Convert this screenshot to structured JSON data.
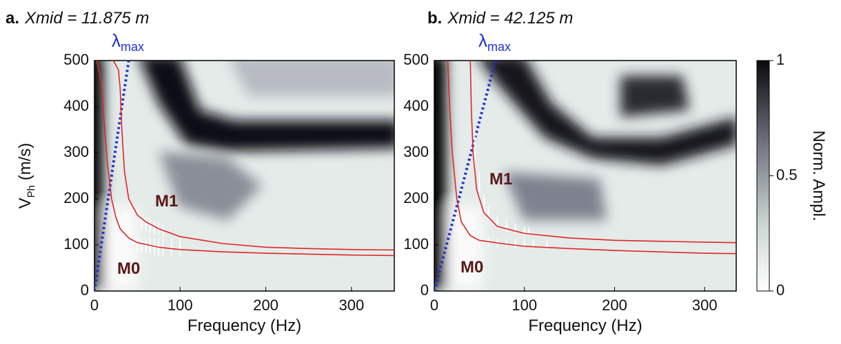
{
  "chart_data": [
    {
      "type": "dispersion",
      "panel_label": "a.",
      "title": "Xmid = 11.875 m",
      "xlabel": "Frequency (Hz)",
      "ylabel": {
        "main": "V",
        "sub": "Ph",
        "rest": " (m/s)"
      },
      "xlim": [
        0,
        350
      ],
      "xticks": [
        0,
        100,
        200,
        300
      ],
      "ylim": [
        0,
        500
      ],
      "yticks": [
        0,
        100,
        200,
        300,
        400,
        500
      ],
      "lambda": {
        "label": "λ",
        "sub": "max",
        "color": "#1f2fd6",
        "x": [
          0,
          40
        ],
        "values": [
          0,
          500
        ]
      },
      "series": [
        {
          "name": "M0",
          "color": "#e02424",
          "x": [
            3,
            8,
            12,
            15,
            20,
            25,
            30,
            40,
            50,
            75,
            100,
            150,
            200,
            300,
            350
          ],
          "values": [
            500,
            450,
            350,
            280,
            200,
            160,
            135,
            115,
            105,
            95,
            90,
            85,
            82,
            78,
            77
          ]
        },
        {
          "name": "M1",
          "color": "#e02424",
          "x": [
            22,
            28,
            30,
            32,
            35,
            40,
            50,
            60,
            75,
            100,
            150,
            200,
            250,
            300,
            350
          ],
          "values": [
            500,
            480,
            440,
            350,
            260,
            200,
            165,
            150,
            135,
            118,
            103,
            95,
            92,
            90,
            89
          ]
        }
      ],
      "picks": [
        {
          "x": [
            50,
            55,
            60,
            65,
            70,
            75,
            80,
            90,
            100
          ],
          "values": [
            100,
            99,
            98,
            97,
            96,
            95,
            95,
            94,
            94
          ],
          "errors": [
            15,
            15,
            15,
            18,
            18,
            20,
            20,
            20,
            20
          ]
        },
        {
          "x": [
            55,
            60,
            65,
            70,
            75,
            80
          ],
          "values": [
            150,
            145,
            140,
            138,
            135,
            132
          ],
          "errors": [
            15,
            15,
            15,
            15,
            15,
            15
          ]
        }
      ]
    },
    {
      "type": "dispersion",
      "panel_label": "b.",
      "title": "Xmid = 42.125 m",
      "xlabel": "Frequency (Hz)",
      "xlim": [
        0,
        335
      ],
      "xticks": [
        0,
        100,
        200,
        300
      ],
      "ylim": [
        0,
        500
      ],
      "yticks": [
        0,
        100,
        200,
        300,
        400,
        500
      ],
      "lambda": {
        "label": "λ",
        "sub": "max",
        "color": "#1f2fd6",
        "x": [
          0,
          68
        ],
        "values": [
          0,
          500
        ]
      },
      "series": [
        {
          "name": "M0",
          "color": "#e02424",
          "x": [
            15,
            17,
            20,
            25,
            30,
            40,
            50,
            75,
            100,
            150,
            200,
            250,
            300,
            335
          ],
          "values": [
            500,
            400,
            300,
            200,
            150,
            120,
            110,
            103,
            97,
            92,
            88,
            85,
            82,
            81
          ]
        },
        {
          "name": "M1",
          "color": "#e02424",
          "x": [
            40,
            41,
            43,
            47,
            55,
            70,
            100,
            150,
            200,
            250,
            300,
            335
          ],
          "values": [
            500,
            400,
            300,
            220,
            170,
            140,
            125,
            115,
            110,
            108,
            106,
            105
          ]
        }
      ],
      "picks": [
        {
          "x": [
            45,
            50,
            60,
            70,
            80,
            90,
            100,
            110,
            125
          ],
          "values": [
            108,
            107,
            106,
            105,
            104,
            103,
            103,
            102,
            100
          ],
          "errors": [
            10,
            10,
            10,
            10,
            10,
            10,
            10,
            10,
            10
          ]
        },
        {
          "x": [
            45,
            50,
            55,
            60,
            70,
            80,
            90,
            100,
            105
          ],
          "values": [
            300,
            230,
            190,
            170,
            150,
            140,
            135,
            130,
            128
          ],
          "errors": [
            50,
            30,
            20,
            15,
            12,
            12,
            10,
            10,
            10
          ]
        }
      ]
    }
  ],
  "colorbar": {
    "label": "Norm. Ampl.",
    "lim": [
      0,
      1
    ],
    "ticks": [
      0,
      0.5,
      1
    ]
  }
}
